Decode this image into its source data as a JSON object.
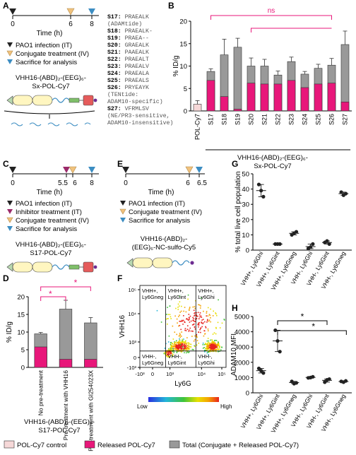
{
  "panels": {
    "A": {
      "letter": "A",
      "ticks": [
        "0",
        "6",
        "8"
      ],
      "xlabel": "Time (h)",
      "legend": [
        "PAO1 infection (IT)",
        "Conjugate treatment (IV)",
        "Sacrifice for analysis"
      ],
      "construct": [
        "VHH16-(ABD)₂-(EEG)₆-",
        "Sx-POL-Cy7"
      ],
      "substrates": [
        {
          "id": "S17:",
          "seq": " PRAEALK"
        },
        {
          "id": "",
          "seq": "(ADAMtide)"
        },
        {
          "id": "S18:",
          "seq": " PRAEALK-"
        },
        {
          "id": "S19:",
          "seq": " PRAEA--"
        },
        {
          "id": "S20:",
          "seq": " GRAEALK"
        },
        {
          "id": "S21:",
          "seq": " PAAEALK"
        },
        {
          "id": "S22:",
          "seq": " PRAEALT"
        },
        {
          "id": "S23:",
          "seq": " PRAEALV"
        },
        {
          "id": "S24:",
          "seq": " PRAEALA"
        },
        {
          "id": "S25:",
          "seq": " PRAEALS"
        },
        {
          "id": "S26:",
          "seq": " PRYEAYK"
        },
        {
          "id": "",
          "seq": "(TENtide:"
        },
        {
          "id": "",
          "seq": "ADAM10-specific)"
        },
        {
          "id": "S27:",
          "seq": " VFRMLSV"
        },
        {
          "id": "",
          "seq": "(NE/PR3-sensitive,"
        },
        {
          "id": "",
          "seq": "ADAM10-insensitive)"
        }
      ]
    },
    "B": {
      "letter": "B",
      "construct": [
        "VHH16-(ABD)₂-(EEG)₆-",
        "Sx-POL-Cy7"
      ],
      "sig": "ns"
    },
    "C": {
      "letter": "C",
      "ticks": [
        "0",
        "5.5",
        "6",
        "8"
      ],
      "xlabel": "Time (h)",
      "legend": [
        "PAO1 infection (IT)",
        "Inhibitor treatment (IT)",
        "Conjugate treatment (IV)",
        "Sacrifice for analysis"
      ],
      "construct": [
        "VHH16-(ABD)₂-(EEG)₆-",
        "S17-POL-Cy7"
      ]
    },
    "D": {
      "letter": "D",
      "construct": [
        "VHH16-(ABD)₂-(EEG)₆-",
        "S17-POL-Cy7"
      ],
      "sig": [
        "*",
        "*"
      ]
    },
    "E": {
      "letter": "E",
      "ticks": [
        "0",
        "6",
        "6.5"
      ],
      "xlabel": "Time (h)",
      "legend": [
        "PAO1 infection (IT)",
        "Conjugate treatment (IV)",
        "Sacrifice for analysis"
      ],
      "construct": [
        "VHH16-(ABD)₂-",
        "(EEG)₆-NC-sulfo-Cy5"
      ]
    },
    "F": {
      "letter": "F",
      "gates": [
        "VHH+,",
        "Ly6Gneg",
        "VHH+,",
        "Ly6Gint",
        "VHH+,",
        "Ly6Ghi",
        "VHH-,",
        "Ly6Gneg",
        "VHH-,",
        "Ly6Gint",
        "VHH-,",
        "Ly6Ghi"
      ],
      "colorbar": [
        "Low",
        "High"
      ]
    },
    "G": {
      "letter": "G"
    },
    "H": {
      "letter": "H",
      "sig": [
        "*",
        "*"
      ]
    }
  },
  "legend_bottom": [
    "POL-Cy7 control",
    "Released POL-Cy7",
    "Total (Conjugate + Released POL-Cy7)"
  ],
  "colors": {
    "released": "#e8177a",
    "total": "#999999",
    "control": "#f6d8d8",
    "infection": "#222222",
    "inhibitor": "#9b2a6a",
    "conjugate": "#f1c27d",
    "sacrifice": "#3c8dc2",
    "sigline": "#e8177a"
  },
  "chart_data": [
    {
      "panel": "B",
      "type": "bar",
      "ylabel": "% ID/g",
      "ylim": [
        0,
        20
      ],
      "yticks": [
        0,
        5,
        10,
        15,
        20
      ],
      "categories": [
        "POL-Cy7",
        "S17",
        "S18",
        "S19",
        "S20",
        "S21",
        "S22",
        "S23",
        "S24",
        "S25",
        "S26",
        "S27"
      ],
      "series": [
        {
          "name": "Released POL-Cy7",
          "values": [
            1.5,
            6.8,
            3.2,
            0.4,
            6.2,
            6.0,
            6.0,
            6.8,
            5.2,
            6.0,
            6.2,
            2.0
          ]
        },
        {
          "name": "Total (Conjugate + Released POL-Cy7)",
          "values": [
            1.5,
            8.8,
            12.5,
            14.2,
            10.0,
            10.0,
            8.0,
            11.0,
            8.2,
            9.5,
            10.2,
            14.8
          ]
        }
      ],
      "errors_total": [
        0.8,
        0.6,
        3.5,
        2.0,
        1.8,
        1.5,
        0.9,
        1.0,
        0.6,
        0.9,
        1.5,
        3.0
      ],
      "annotations": [
        "ns"
      ]
    },
    {
      "panel": "D",
      "type": "bar",
      "ylabel": "% ID/g",
      "ylim": [
        0,
        20
      ],
      "yticks": [
        0,
        5,
        10,
        15,
        20
      ],
      "categories": [
        "No pre-treatment",
        "Pre-treatment with VHH16",
        "Pre-treatment with GI254023X"
      ],
      "series": [
        {
          "name": "Released POL-Cy7",
          "values": [
            5.8,
            2.3,
            2.3
          ]
        },
        {
          "name": "Total (Conjugate + Released POL-Cy7)",
          "values": [
            9.5,
            16.5,
            12.6
          ]
        }
      ],
      "errors_total": [
        0.4,
        2.5,
        1.5
      ],
      "annotations": [
        "*",
        "*"
      ]
    },
    {
      "panel": "F",
      "type": "scatter",
      "xlabel": "Ly6G",
      "ylabel": "VHH16",
      "xticks": [
        "-10³",
        "0",
        "10³",
        "10⁴",
        "10⁵"
      ],
      "yticks": [
        "-10³",
        "0",
        "10³",
        "10⁴",
        "10⁵"
      ]
    },
    {
      "panel": "G",
      "type": "scatter",
      "ylabel": "% total live cell population",
      "ylim": [
        0,
        50
      ],
      "yticks": [
        0,
        10,
        20,
        30,
        40,
        50
      ],
      "categories": [
        "VHH+, Ly6Ghi",
        "VHH+, Ly6Gint",
        "VHH+, Ly6Gneg",
        "VHH-, Ly6Ghi",
        "VHH-, Ly6Gint",
        "VHH-, Ly6Gneg"
      ],
      "values": [
        [
          43,
          39,
          35
        ],
        [
          4,
          4,
          4
        ],
        [
          10,
          11,
          12
        ],
        [
          1,
          2,
          4
        ],
        [
          5,
          6,
          4
        ],
        [
          38,
          36,
          37
        ]
      ],
      "means": [
        39,
        4,
        11,
        2.3,
        5,
        37
      ]
    },
    {
      "panel": "H",
      "type": "scatter",
      "ylabel": "ADAM10 MFI",
      "ylim": [
        0,
        5000
      ],
      "yticks": [
        0,
        1000,
        2000,
        3000,
        4000,
        5000
      ],
      "categories": [
        "VHH+, Ly6Ghi",
        "VHH+, Ly6Gint",
        "VHH+, Ly6Gneg",
        "VHH-, Ly6Ghi",
        "VHH-, Ly6Gint",
        "VHH-, Ly6Gneg"
      ],
      "values": [
        [
          1600,
          1450,
          1300
        ],
        [
          4100,
          3400,
          2700
        ],
        [
          750,
          600,
          650
        ],
        [
          980,
          1000,
          1050
        ],
        [
          700,
          850,
          900
        ],
        [
          750,
          700,
          780
        ]
      ],
      "means": [
        1450,
        3400,
        670,
        1010,
        820,
        740
      ],
      "annotations": [
        "*",
        "*"
      ]
    }
  ]
}
